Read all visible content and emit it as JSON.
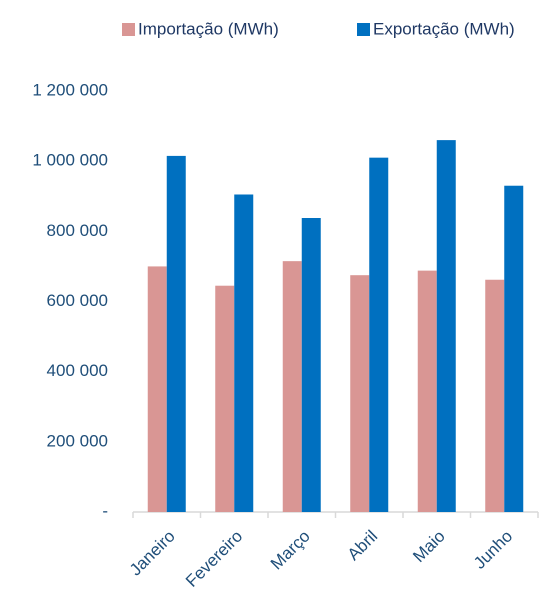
{
  "chart_data": {
    "type": "bar",
    "categories": [
      "Janeiro",
      "Fevereiro",
      "Março",
      "Abril",
      "Maio",
      "Junho"
    ],
    "series": [
      {
        "name": "Importação (MWh)",
        "color": "#d99694",
        "values": [
          700000,
          645000,
          715000,
          675000,
          688000,
          662000
        ]
      },
      {
        "name": "Exportação (MWh)",
        "color": "#0070c0",
        "values": [
          1015000,
          905000,
          838000,
          1010000,
          1060000,
          930000
        ]
      }
    ],
    "ylim": [
      0,
      1200000
    ],
    "yticks": [
      {
        "value": 0,
        "label": "-"
      },
      {
        "value": 200000,
        "label": "200 000"
      },
      {
        "value": 400000,
        "label": "400 000"
      },
      {
        "value": 600000,
        "label": "600 000"
      },
      {
        "value": 800000,
        "label": "800 000"
      },
      {
        "value": 1000000,
        "label": "1 000 000"
      },
      {
        "value": 1200000,
        "label": "1 200 000"
      }
    ],
    "legend": "top"
  }
}
